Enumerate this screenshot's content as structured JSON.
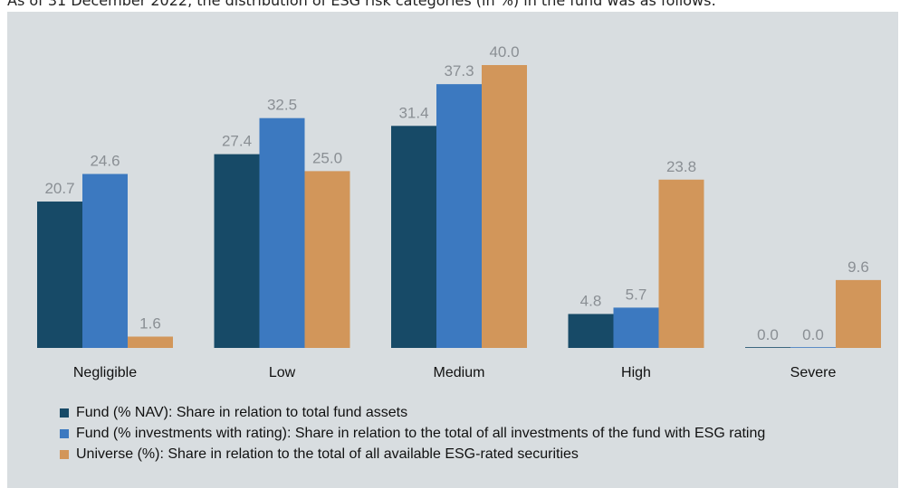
{
  "caption": "As of 31 December 2022, the distribution of ESG risk categories (in %) in the fund was as follows:",
  "chart_data": {
    "type": "bar",
    "categories": [
      "Negligible",
      "Low",
      "Medium",
      "High",
      "Severe"
    ],
    "series": [
      {
        "name": "Fund (% NAV): Share in relation to total fund assets",
        "color": "#174a67",
        "values": [
          20.7,
          27.4,
          31.4,
          4.8,
          0.0
        ],
        "labels": [
          "20.7",
          "27.4",
          "31.4",
          "4.8",
          "0.0"
        ]
      },
      {
        "name": "Fund (% investments with rating): Share in relation to the total of all investments of the fund with ESG rating",
        "color": "#3c79c0",
        "values": [
          24.6,
          32.5,
          37.3,
          5.7,
          0.0
        ],
        "labels": [
          "24.6",
          "32.5",
          "37.3",
          "5.7",
          "0.0"
        ]
      },
      {
        "name": "Universe (%): Share in relation to the total of all available ESG-rated securities",
        "color": "#d2965a",
        "values": [
          1.6,
          25.0,
          40.0,
          23.8,
          9.6
        ],
        "labels": [
          "1.6",
          "25.0",
          "40.0",
          "23.8",
          "9.6"
        ]
      }
    ],
    "ylim": [
      0,
      40
    ],
    "grid": false,
    "legend_position": "bottom"
  }
}
